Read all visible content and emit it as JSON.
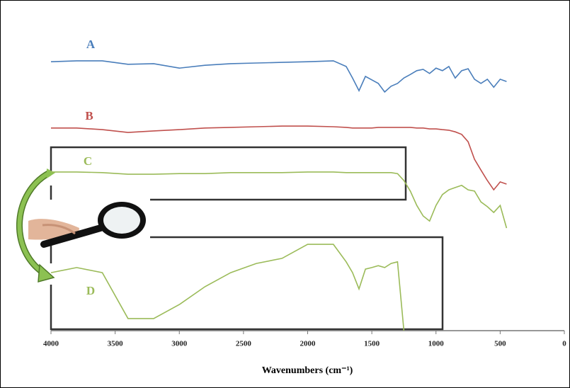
{
  "chart_data": {
    "type": "line",
    "xlabel": "Wavenumbers (cm⁻¹)",
    "x": [
      4000,
      3800,
      3600,
      3400,
      3200,
      3000,
      2800,
      2600,
      2400,
      2200,
      2000,
      1800,
      1700,
      1650,
      1600,
      1550,
      1500,
      1450,
      1400,
      1350,
      1300,
      1250,
      1200,
      1150,
      1100,
      1050,
      1000,
      950,
      900,
      850,
      800,
      750,
      700,
      650,
      600,
      550,
      500,
      450
    ],
    "xlim": [
      4000,
      0
    ],
    "xticks": [
      4000,
      3500,
      3000,
      2500,
      2000,
      1500,
      1000,
      500,
      0
    ],
    "ylim": [
      0,
      100
    ],
    "series": [
      {
        "name": "A",
        "color": "#4a7ebb",
        "values": [
          84.4,
          84.7,
          84.7,
          83.6,
          83.8,
          82.4,
          83.3,
          83.8,
          84.0,
          84.2,
          84.4,
          84.7,
          82.9,
          79.3,
          75.3,
          79.8,
          78.7,
          77.6,
          74.9,
          76.7,
          77.6,
          79.3,
          80.4,
          81.6,
          82.0,
          80.7,
          82.4,
          81.6,
          82.9,
          79.3,
          81.6,
          82.2,
          78.9,
          77.6,
          78.9,
          76.4,
          78.9,
          78.2
        ]
      },
      {
        "name": "B",
        "color": "#c0504d",
        "values": [
          63.6,
          63.6,
          63.1,
          62.2,
          62.7,
          63.1,
          63.6,
          63.8,
          64.0,
          64.2,
          64.2,
          64.0,
          63.8,
          63.6,
          63.6,
          63.6,
          63.6,
          63.8,
          63.8,
          63.8,
          63.8,
          63.8,
          63.8,
          63.6,
          63.6,
          63.3,
          63.3,
          63.1,
          62.9,
          62.4,
          61.6,
          59.3,
          53.8,
          50.4,
          47.1,
          44.2,
          46.7,
          46.0
        ]
      },
      {
        "name": "C",
        "color": "#9bbb59",
        "values": [
          49.8,
          49.8,
          49.6,
          49.1,
          49.1,
          49.3,
          49.3,
          49.6,
          49.6,
          49.6,
          49.8,
          49.8,
          49.6,
          49.6,
          49.6,
          49.6,
          49.6,
          49.6,
          49.6,
          49.6,
          49.3,
          47.1,
          43.8,
          39.3,
          36.0,
          34.4,
          39.3,
          42.7,
          44.2,
          44.9,
          45.6,
          44.2,
          43.8,
          40.4,
          38.9,
          37.1,
          39.3,
          32.2
        ]
      },
      {
        "name": "D",
        "color": "#9bbb59",
        "values": [
          18.2,
          19.8,
          18.2,
          3.8,
          3.8,
          8.2,
          13.8,
          18.2,
          21.1,
          22.7,
          27.1,
          27.1,
          21.6,
          18.2,
          13.1,
          19.3,
          19.8,
          20.4,
          19.8,
          21.1,
          21.6,
          0.0,
          null,
          null,
          null,
          null,
          null,
          null,
          null,
          null,
          null,
          null,
          null,
          null,
          null,
          null,
          null,
          null
        ]
      }
    ]
  }
}
